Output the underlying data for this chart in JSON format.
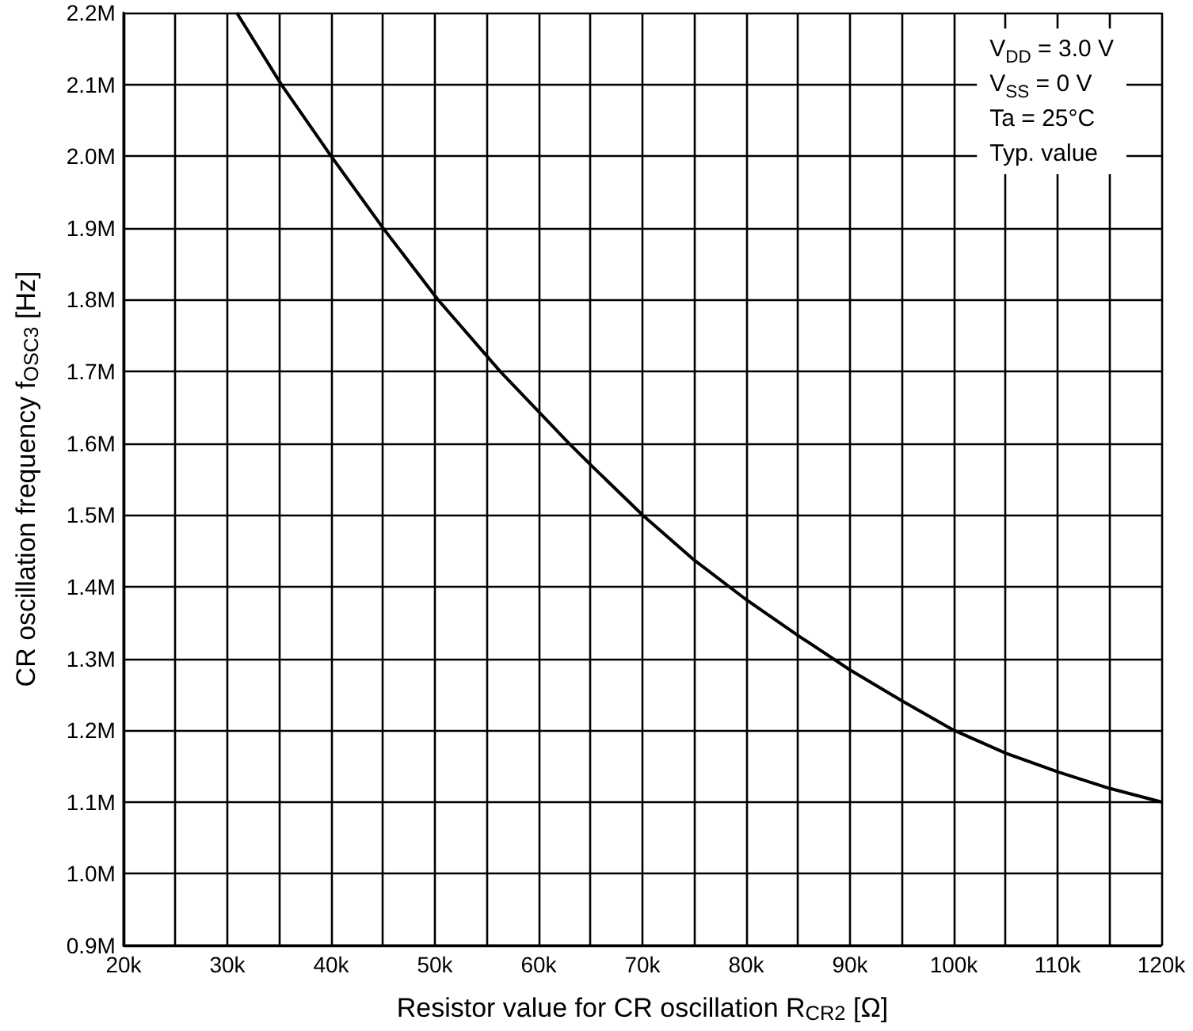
{
  "chart_data": {
    "type": "line",
    "xlabel": "Resistor value for CR oscillation R$_{CR2}$ [Ω]",
    "ylabel": "CR oscillation frequency f$_{OSC3}$ [Hz]",
    "annotations": [
      "V$_{DD}$ = 3.0 V",
      "V$_{SS}$ = 0 V",
      "Ta = 25°C",
      "Typ. value"
    ],
    "series": [
      {
        "color": "#000000",
        "x": [
          30900,
          35200,
          40000,
          45000,
          50300,
          56300,
          62900,
          65000,
          70000,
          75000,
          80000,
          85000,
          90000,
          95000,
          100000,
          105000,
          110000,
          115000,
          120000
        ],
        "values": [
          2200000,
          2100000,
          2000000,
          1900000,
          1800000,
          1700000,
          1600000,
          1570000,
          1500000,
          1437000,
          1382000,
          1332000,
          1284000,
          1241000,
          1200000,
          1168000,
          1142000,
          1119000,
          1100000
        ]
      }
    ],
    "xlim": [
      20000,
      120000
    ],
    "xticks": [
      {
        "value": 20000,
        "label": "20k"
      },
      {
        "value": 25000,
        "label": null
      },
      {
        "value": 30000,
        "label": "30k"
      },
      {
        "value": 35000,
        "label": null
      },
      {
        "value": 40000,
        "label": "40k"
      },
      {
        "value": 45000,
        "label": null
      },
      {
        "value": 50000,
        "label": "50k"
      },
      {
        "value": 55000,
        "label": null
      },
      {
        "value": 60000,
        "label": "60k"
      },
      {
        "value": 65000,
        "label": null
      },
      {
        "value": 70000,
        "label": "70k"
      },
      {
        "value": 75000,
        "label": null
      },
      {
        "value": 80000,
        "label": "80k"
      },
      {
        "value": 85000,
        "label": null
      },
      {
        "value": 90000,
        "label": "90k"
      },
      {
        "value": 95000,
        "label": null
      },
      {
        "value": 100000,
        "label": "100k"
      },
      {
        "value": 105000,
        "label": null
      },
      {
        "value": 110000,
        "label": "110k"
      },
      {
        "value": 115000,
        "label": null
      },
      {
        "value": 120000,
        "label": "120k"
      }
    ],
    "ylim": [
      900000,
      2200000
    ],
    "yticks": [
      {
        "value": 900000,
        "label": "0.9M"
      },
      {
        "value": 1000000,
        "label": "1.0M"
      },
      {
        "value": 1100000,
        "label": "1.1M"
      },
      {
        "value": 1200000,
        "label": "1.2M"
      },
      {
        "value": 1300000,
        "label": "1.3M"
      },
      {
        "value": 1400000,
        "label": "1.4M"
      },
      {
        "value": 1500000,
        "label": "1.5M"
      },
      {
        "value": 1600000,
        "label": "1.6M"
      },
      {
        "value": 1700000,
        "label": "1.7M"
      },
      {
        "value": 1800000,
        "label": "1.8M"
      },
      {
        "value": 1900000,
        "label": "1.9M"
      },
      {
        "value": 2000000,
        "label": "2.0M"
      },
      {
        "value": 2100000,
        "label": "2.1M"
      },
      {
        "value": 2200000,
        "label": "2.2M"
      }
    ],
    "grid": true,
    "marker": "none",
    "line_style": "solid"
  }
}
